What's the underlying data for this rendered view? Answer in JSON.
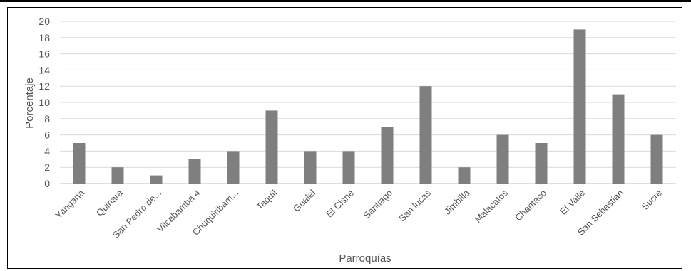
{
  "chart_data": {
    "type": "bar",
    "xlabel": "Parroquías",
    "ylabel": "Porcentaje",
    "ylim": [
      0,
      20
    ],
    "yticks": [
      0,
      2,
      4,
      6,
      8,
      10,
      12,
      14,
      16,
      18,
      20
    ],
    "grid": true,
    "categories": [
      "Yangana",
      "Quinara",
      "San Pedro de...",
      "Vilcabamba 4",
      "Chuquiribam...",
      "Taquil",
      "Gualel",
      "El Cisne",
      "Santiago",
      "San lucas",
      "Jimbilla",
      "Malacatos",
      "Chantaco",
      "El Valle",
      "San Sebastian",
      "Sucre"
    ],
    "values": [
      5,
      2,
      1,
      3,
      4,
      9,
      4,
      4,
      7,
      12,
      2,
      6,
      5,
      19,
      11,
      6
    ],
    "bar_color": "#7f7f7f",
    "grid_color": "#d9d9d9"
  }
}
